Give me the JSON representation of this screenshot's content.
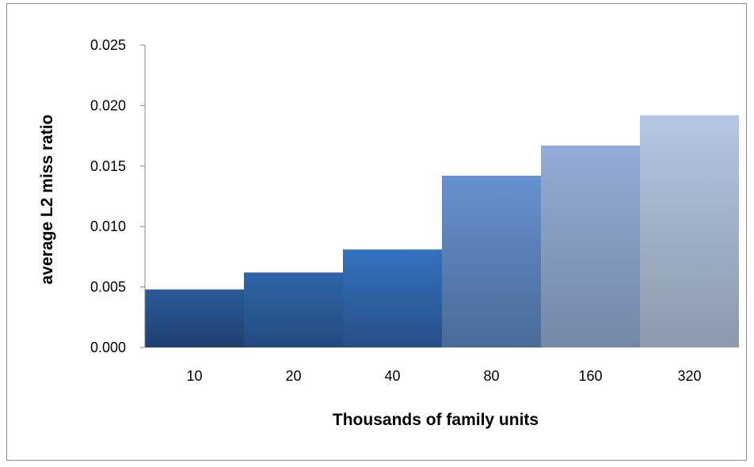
{
  "chart_data": {
    "type": "bar",
    "title": "",
    "xlabel": "Thousands of family units",
    "ylabel": "average L2 miss ratio",
    "categories": [
      "10",
      "20",
      "40",
      "80",
      "160",
      "320"
    ],
    "values": [
      0.0048,
      0.0062,
      0.0081,
      0.0142,
      0.0167,
      0.0192
    ],
    "ylim": [
      0,
      0.025
    ],
    "yticks": [
      "0.000",
      "0.005",
      "0.010",
      "0.015",
      "0.020",
      "0.025"
    ],
    "grid": false,
    "legend": "none",
    "bar_colors_top": [
      "#2a5a9a",
      "#2f65a8",
      "#3372bf",
      "#6690cf",
      "#93abd6",
      "#b4c6e3"
    ],
    "bar_colors_bottom": [
      "#1e3f6e",
      "#234a7e",
      "#264f86",
      "#4a6b97",
      "#7488a6",
      "#8d99ab"
    ]
  }
}
